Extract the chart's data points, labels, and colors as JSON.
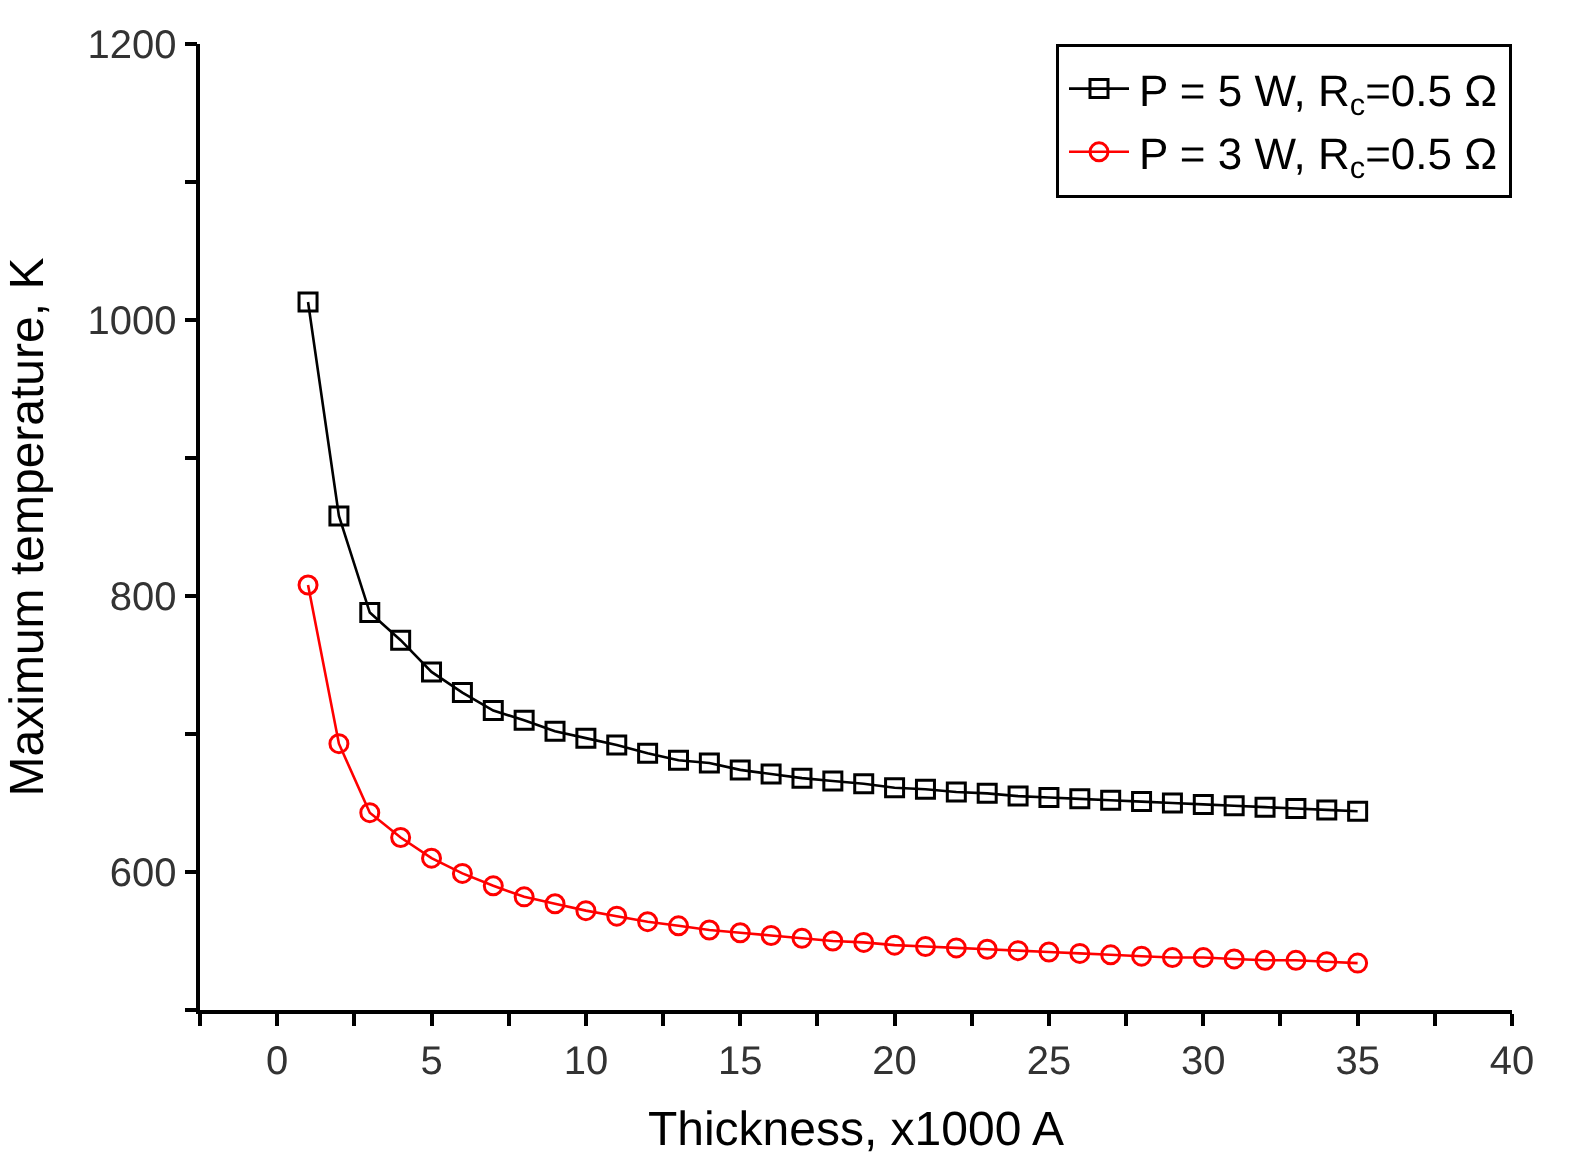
{
  "chart_data": {
    "type": "line",
    "xlabel": "Thickness, x1000 A",
    "ylabel": "Maximum temperature, K",
    "x": [
      1,
      2,
      3,
      4,
      5,
      6,
      7,
      8,
      9,
      10,
      11,
      12,
      13,
      14,
      15,
      16,
      17,
      18,
      19,
      20,
      21,
      22,
      23,
      24,
      25,
      26,
      27,
      28,
      29,
      30,
      31,
      32,
      33,
      34,
      35
    ],
    "series": [
      {
        "name": "P = 5 W, R$_{c}$=0.5 Ω",
        "color": "#000000",
        "marker": "square",
        "values": [
          1013,
          858,
          788,
          768,
          745,
          730,
          717,
          710,
          702,
          697,
          692,
          686,
          681,
          679,
          674,
          671,
          668,
          666,
          664,
          661,
          660,
          658,
          657,
          655,
          654,
          653,
          652,
          651,
          650,
          649,
          648,
          647,
          646,
          645,
          644
        ]
      },
      {
        "name": "P = 3 W, R$_{c}$=0.5 Ω",
        "color": "#ff0000",
        "marker": "circle",
        "values": [
          808,
          693,
          643,
          625,
          610,
          599,
          590,
          582,
          577,
          572,
          568,
          564,
          561,
          558,
          556,
          554,
          552,
          550,
          549,
          547,
          546,
          545,
          544,
          543,
          542,
          541,
          540,
          539,
          538,
          538,
          537,
          536,
          536,
          535,
          534
        ]
      }
    ],
    "xlim": [
      -2.5,
      40
    ],
    "ylim": [
      500,
      1200
    ],
    "xticks": [
      {
        "value": -2.5,
        "label": null
      },
      0,
      {
        "value": 2.5,
        "label": null
      },
      5,
      {
        "value": 7.5,
        "label": null
      },
      10,
      {
        "value": 12.5,
        "label": null
      },
      15,
      {
        "value": 17.5,
        "label": null
      },
      20,
      {
        "value": 22.5,
        "label": null
      },
      25,
      {
        "value": 27.5,
        "label": null
      },
      30,
      {
        "value": 32.5,
        "label": null
      },
      35,
      {
        "value": 37.5,
        "label": null
      },
      40
    ],
    "yticks": [
      {
        "value": 500,
        "label": null
      },
      600,
      {
        "value": 700,
        "label": null
      },
      800,
      {
        "value": 900,
        "label": null
      },
      1000,
      {
        "value": 1100,
        "label": null
      },
      1200
    ],
    "legend": "top right",
    "line_style": "solid"
  }
}
